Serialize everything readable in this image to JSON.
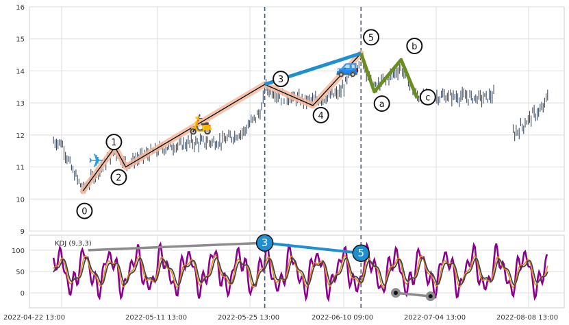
{
  "chart_data": {
    "type": "candlestick",
    "x_tick_labels": [
      "2022-04-22 13:00",
      "2022-05-11 13:00",
      "2022-05-25 13:00",
      "2022-06-10 09:00",
      "2022-07-04 13:00",
      "2022-08-08 13:00"
    ],
    "price_panel": {
      "ylim": [
        9,
        16
      ],
      "y_ticks": [
        9,
        10,
        11,
        12,
        13,
        14,
        15,
        16
      ],
      "grid": true,
      "candle_color": "#3b4a60",
      "wave_labels": [
        "0",
        "1",
        "2",
        "3",
        "4",
        "5",
        "a",
        "b",
        "c"
      ],
      "impulse_points": [
        {
          "label": "0",
          "t": 0.1,
          "y": 10.25
        },
        {
          "label": "1",
          "t": 0.16,
          "y": 11.62
        },
        {
          "label": "2",
          "t": 0.18,
          "y": 11.0
        },
        {
          "label": "3",
          "t": 0.44,
          "y": 13.58
        },
        {
          "label": "4",
          "t": 0.53,
          "y": 12.92
        },
        {
          "label": "5",
          "t": 0.62,
          "y": 14.55
        }
      ],
      "correction_points": [
        {
          "label": "5",
          "t": 0.62,
          "y": 14.55
        },
        {
          "label": "a",
          "t": 0.645,
          "y": 13.35
        },
        {
          "label": "b",
          "t": 0.695,
          "y": 14.35
        },
        {
          "label": "c",
          "t": 0.725,
          "y": 13.15
        }
      ],
      "trend_line": [
        {
          "t": 0.44,
          "y": 13.58
        },
        {
          "t": 0.62,
          "y": 14.55
        }
      ],
      "vertical_markers_t": [
        0.44,
        0.62
      ],
      "colors": {
        "impulse_band": "#f4b89e",
        "impulse_line": "#111111",
        "correction": "#6b8e23",
        "trend": "#1f8fd0",
        "marker": "#4a5a6e"
      },
      "icons": [
        "airplane-icon",
        "scooter-icon",
        "car-icon"
      ]
    },
    "kdj_panel": {
      "title": "KDJ (9,3,3)",
      "ylim": [
        -35,
        135
      ],
      "y_ticks": [
        0,
        50,
        100
      ],
      "series_colors": {
        "K": "#e08a1e",
        "D": "#444444",
        "J": "#8b008b"
      },
      "divergence_top": [
        {
          "t": 0.11,
          "y": 100
        },
        {
          "t": 0.44,
          "y": 117
        }
      ],
      "divergence_low": [
        {
          "t": 0.685,
          "y": 0
        },
        {
          "t": 0.75,
          "y": -8
        }
      ],
      "peak_labels": [
        {
          "label": "3",
          "t": 0.44,
          "y": 117
        },
        {
          "label": "5",
          "t": 0.62,
          "y": 93
        }
      ],
      "colors": {
        "divergence": "#8c8c8c",
        "peak": "#1f8fd0"
      }
    }
  }
}
